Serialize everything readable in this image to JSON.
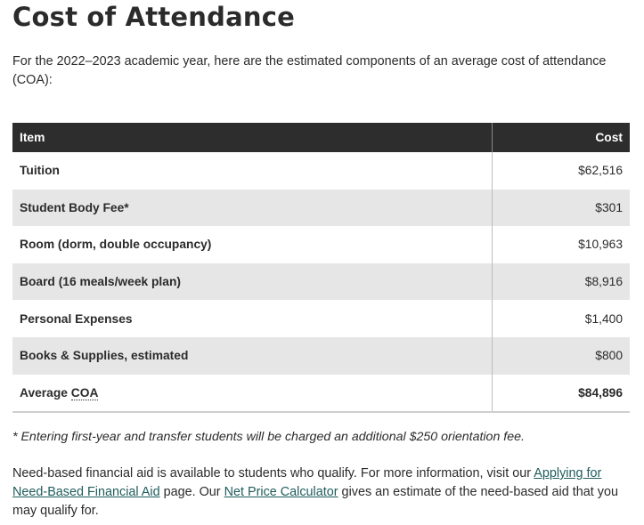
{
  "page": {
    "title": "Cost of Attendance",
    "intro": "For the 2022–2023 academic year, here are the estimated components of an average cost of attendance (COA):"
  },
  "table": {
    "headers": {
      "item": "Item",
      "cost": "Cost"
    },
    "rows": [
      {
        "item": "Tuition",
        "cost": "$62,516"
      },
      {
        "item": "Student Body Fee*",
        "cost": "$301"
      },
      {
        "item": "Room (dorm, double occupancy)",
        "cost": "$10,963"
      },
      {
        "item": "Board (16 meals/week plan)",
        "cost": "$8,916"
      },
      {
        "item": "Personal Expenses",
        "cost": "$1,400"
      },
      {
        "item": "Books & Supplies, estimated",
        "cost": "$800"
      }
    ],
    "total": {
      "label_prefix": "Average ",
      "label_abbr": "COA",
      "cost": "$84,896"
    }
  },
  "footnote": "* Entering first-year and transfer students will be charged an additional $250 orientation fee.",
  "aid": {
    "text_before": "Need-based financial aid is available to students who qualify.  For more information, visit our ",
    "link_applying": "Applying for Need-Based Financial Aid",
    "text_middle": " page. Our ",
    "link_calculator": "Net Price Calculator",
    "text_after": " gives an estimate of the need-based aid that you may qualify for."
  },
  "colors": {
    "header_bg": "#2d2d2d",
    "row_shade": "#e6e6e6",
    "link": "#1f5c5c",
    "text": "#2b2b2b"
  }
}
